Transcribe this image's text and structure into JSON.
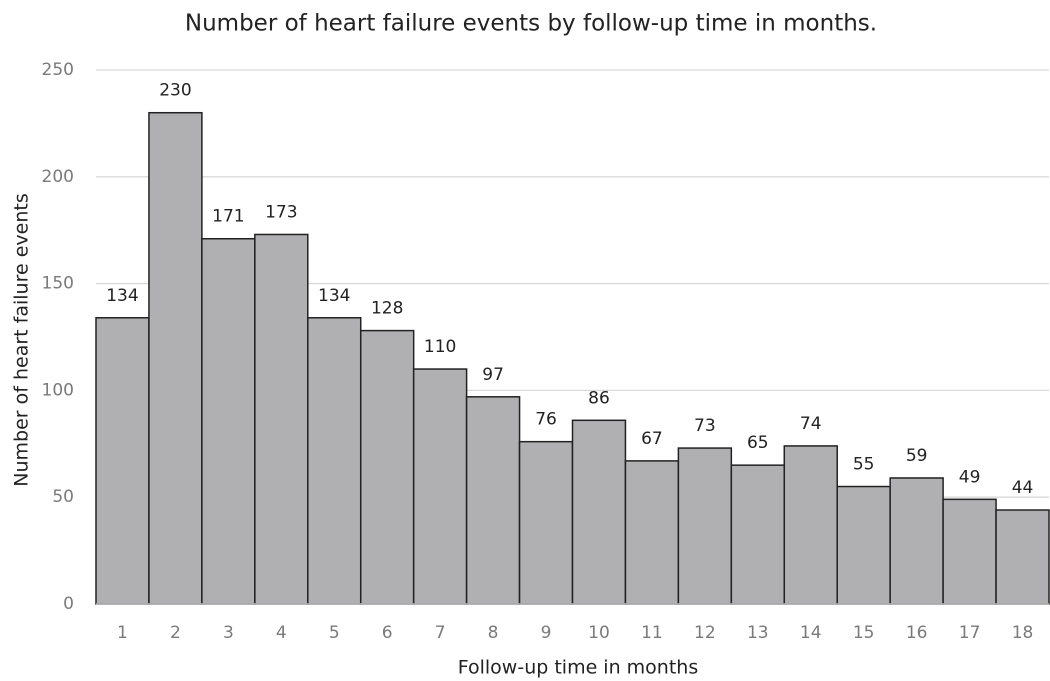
{
  "chart_data": {
    "type": "bar",
    "title": "Number of heart failure events by follow-up time in months.",
    "x_label": "Follow-up time in months",
    "y_label": "Number of heart failure events",
    "categories": [
      "1",
      "2",
      "3",
      "4",
      "5",
      "6",
      "7",
      "8",
      "9",
      "10",
      "11",
      "12",
      "13",
      "14",
      "15",
      "16",
      "17",
      "18"
    ],
    "values": [
      134,
      230,
      171,
      173,
      134,
      128,
      110,
      97,
      76,
      86,
      67,
      73,
      65,
      74,
      55,
      59,
      49,
      44
    ],
    "color": "#b0b0b2",
    "ylim": [
      0,
      250
    ],
    "yticks": [
      0,
      50,
      100,
      150,
      200,
      250
    ],
    "grid": true
  }
}
